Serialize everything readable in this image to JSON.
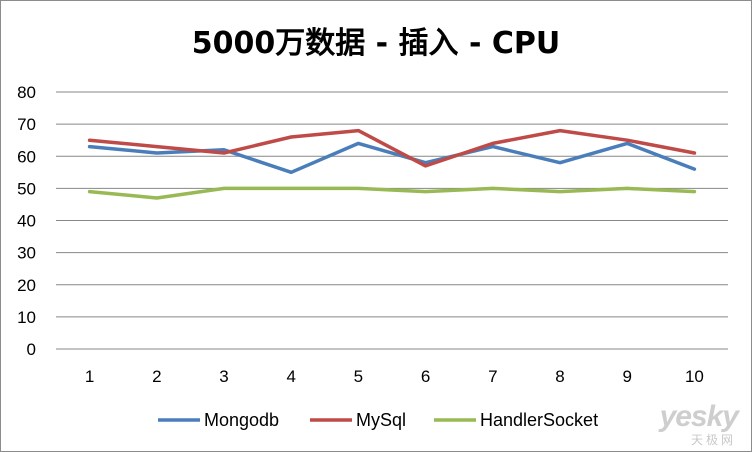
{
  "chart_data": {
    "type": "line",
    "title": "5000万数据 - 插入 - CPU",
    "xlabel": "",
    "ylabel": "",
    "categories": [
      "1",
      "2",
      "3",
      "4",
      "5",
      "6",
      "7",
      "8",
      "9",
      "10"
    ],
    "ylim": [
      0,
      80
    ],
    "yticks": [
      0,
      10,
      20,
      30,
      40,
      50,
      60,
      70,
      80
    ],
    "grid": true,
    "legend_position": "bottom",
    "series": [
      {
        "name": "Mongodb",
        "color": "#4a7ebb",
        "values": [
          63,
          61,
          62,
          55,
          64,
          58,
          63,
          58,
          64,
          56
        ]
      },
      {
        "name": "MySql",
        "color": "#be4b48",
        "values": [
          65,
          63,
          61,
          66,
          68,
          57,
          64,
          68,
          65,
          61
        ]
      },
      {
        "name": "HandlerSocket",
        "color": "#98b954",
        "values": [
          49,
          47,
          50,
          50,
          50,
          49,
          50,
          49,
          50,
          49
        ]
      }
    ]
  },
  "watermark": {
    "line1": "yesky",
    "line2": "天极网"
  }
}
